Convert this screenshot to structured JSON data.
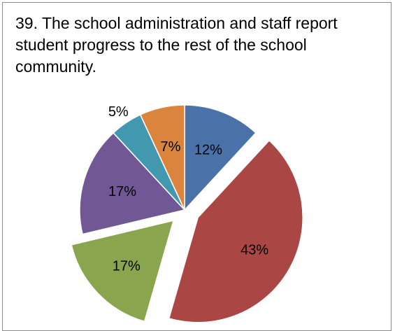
{
  "chart_data": {
    "type": "pie",
    "title": "39. The school administration and staff report student progress to the rest of the school community.",
    "start_angle_deg": 0,
    "direction": "clockwise",
    "slices": [
      {
        "value": 12,
        "label": "12%",
        "color": "#4a72a8",
        "exploded": false
      },
      {
        "value": 43,
        "label": "43%",
        "color": "#aa4644",
        "exploded": true
      },
      {
        "value": 17,
        "label": "17%",
        "color": "#89a54e",
        "exploded": true
      },
      {
        "value": 17,
        "label": "17%",
        "color": "#715895",
        "exploded": false
      },
      {
        "value": 5,
        "label": "5%",
        "color": "#4198af",
        "exploded": false
      },
      {
        "value": 7,
        "label": "7%",
        "color": "#db843d",
        "exploded": false
      }
    ]
  }
}
